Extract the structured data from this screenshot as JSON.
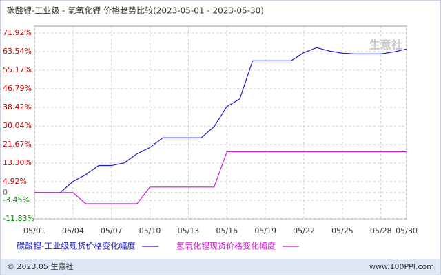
{
  "chart_data": {
    "type": "line",
    "title": "碳酸锂-工业级 - 氢氧化锂 价格趋势比较(2023-05-01 - 2023-05-30)",
    "watermark": "生意社",
    "categories": [
      "05/01",
      null,
      null,
      "05/04",
      null,
      null,
      "05/07",
      null,
      null,
      "05/10",
      null,
      null,
      "05/13",
      null,
      null,
      "05/16",
      null,
      null,
      "05/19",
      null,
      null,
      "05/22",
      null,
      null,
      "05/25",
      null,
      null,
      "05/28",
      null,
      "05/30"
    ],
    "series": [
      {
        "name": "碳酸锂-工业级现货价格变化幅度",
        "color": "#1a1acc",
        "values": [
          0,
          0,
          0,
          5.0,
          8.1,
          12.2,
          12.2,
          13.4,
          17.5,
          20.3,
          24.7,
          24.7,
          24.7,
          24.7,
          29.7,
          38.8,
          42.2,
          59.4,
          59.4,
          59.4,
          59.4,
          63.1,
          65.3,
          63.8,
          62.8,
          62.5,
          62.5,
          62.5,
          63.4,
          64.7
        ]
      },
      {
        "name": "氢氧化锂现货价格变化幅度",
        "color": "#cc1acc",
        "values": [
          0,
          0,
          0,
          0,
          -5.0,
          -5.0,
          -5.0,
          -5.0,
          -5.0,
          2.5,
          2.5,
          2.5,
          2.5,
          2.5,
          2.5,
          18.4,
          18.4,
          18.4,
          18.4,
          18.4,
          18.4,
          18.4,
          18.4,
          18.4,
          18.4,
          18.4,
          18.4,
          18.4,
          18.4,
          18.4
        ]
      }
    ],
    "ylim": [
      -11.83,
      71.92
    ],
    "yticks": [
      {
        "value": 71.92,
        "label": "71.92%"
      },
      {
        "value": 63.54,
        "label": "63.54%"
      },
      {
        "value": 55.17,
        "label": "55.17%"
      },
      {
        "value": 46.79,
        "label": "46.79%"
      },
      {
        "value": 38.42,
        "label": "38.42%"
      },
      {
        "value": 30.04,
        "label": "30.04%"
      },
      {
        "value": 21.67,
        "label": "21.67%"
      },
      {
        "value": 13.3,
        "label": "13.30%"
      },
      {
        "value": 4.92,
        "label": "4.92%"
      },
      0,
      {
        "value": -3.45,
        "label": "-3.45%"
      },
      {
        "value": -11.83,
        "label": "-11.83%"
      }
    ],
    "grid": true,
    "footer_left": "© 2023.05 生意社",
    "footer_right": "www.100PPI.com"
  }
}
